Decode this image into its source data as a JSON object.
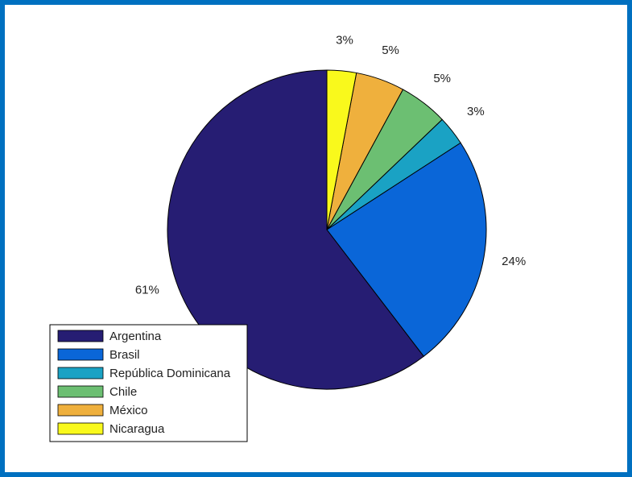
{
  "chart_data": {
    "type": "pie",
    "categories": [
      "Argentina",
      "Brasil",
      "República Dominicana",
      "Chile",
      "México",
      "Nicaragua"
    ],
    "values": [
      61,
      24,
      3,
      5,
      5,
      3
    ],
    "value_labels": [
      "61%",
      "24%",
      "3%",
      "5%",
      "5%",
      "3%"
    ],
    "colors": [
      "#261d73",
      "#0a66d8",
      "#1aa2c4",
      "#6cbf72",
      "#efb03d",
      "#f9f91c"
    ],
    "legend": "lower left"
  }
}
